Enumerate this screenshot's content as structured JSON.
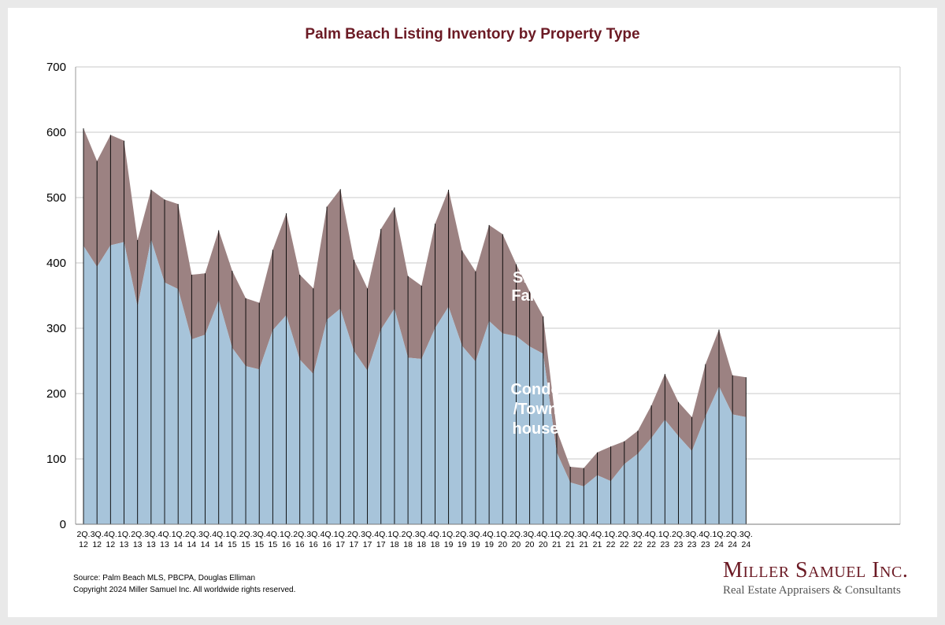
{
  "page": {
    "title": "Palm Beach Listing Inventory by Property Type",
    "source": "Source: Palm Beach MLS, PBCPA, Douglas Elliman",
    "copyright": "Copyright 2024 Miller Samuel Inc.  All worldwide rights reserved.",
    "brand_name": "Miller Samuel Inc.",
    "brand_tagline": "Real Estate Appraisers & Consultants"
  },
  "colors": {
    "title": "#6b1a24",
    "condo": "#a7c4da",
    "single_family": "#9c8282",
    "brand": "#6b1a24"
  },
  "chart_data": {
    "type": "area",
    "stacked": true,
    "title": "Palm Beach Listing Inventory by Property Type",
    "xlabel": "",
    "ylabel": "",
    "ylim": [
      0,
      700
    ],
    "yticks": [
      0,
      100,
      200,
      300,
      400,
      500,
      600,
      700
    ],
    "grid": true,
    "x": [
      [
        "2Q.",
        "12"
      ],
      [
        "3Q.",
        "12"
      ],
      [
        "4Q.",
        "12"
      ],
      [
        "1Q.",
        "13"
      ],
      [
        "2Q.",
        "13"
      ],
      [
        "3Q.",
        "13"
      ],
      [
        "4Q.",
        "13"
      ],
      [
        "1Q.",
        "14"
      ],
      [
        "2Q.",
        "14"
      ],
      [
        "3Q.",
        "14"
      ],
      [
        "4Q.",
        "14"
      ],
      [
        "1Q.",
        "15"
      ],
      [
        "2Q.",
        "15"
      ],
      [
        "3Q.",
        "15"
      ],
      [
        "4Q.",
        "15"
      ],
      [
        "1Q.",
        "16"
      ],
      [
        "2Q.",
        "16"
      ],
      [
        "3Q.",
        "16"
      ],
      [
        "4Q.",
        "16"
      ],
      [
        "1Q.",
        "17"
      ],
      [
        "2Q.",
        "17"
      ],
      [
        "3Q.",
        "17"
      ],
      [
        "4Q.",
        "17"
      ],
      [
        "1Q.",
        "18"
      ],
      [
        "2Q.",
        "18"
      ],
      [
        "3Q.",
        "18"
      ],
      [
        "4Q.",
        "18"
      ],
      [
        "1Q.",
        "19"
      ],
      [
        "2Q.",
        "19"
      ],
      [
        "3Q.",
        "19"
      ],
      [
        "4Q.",
        "19"
      ],
      [
        "1Q.",
        "20"
      ],
      [
        "2Q.",
        "20"
      ],
      [
        "3Q.",
        "20"
      ],
      [
        "4Q.",
        "20"
      ],
      [
        "1Q.",
        "21"
      ],
      [
        "2Q.",
        "21"
      ],
      [
        "3Q.",
        "21"
      ],
      [
        "4Q.",
        "21"
      ],
      [
        "1Q.",
        "22"
      ],
      [
        "2Q.",
        "22"
      ],
      [
        "3Q.",
        "22"
      ],
      [
        "4Q.",
        "22"
      ],
      [
        "1Q.",
        "23"
      ],
      [
        "2Q.",
        "23"
      ],
      [
        "3Q.",
        "23"
      ],
      [
        "4Q.",
        "23"
      ],
      [
        "1Q.",
        "24"
      ],
      [
        "2Q.",
        "24"
      ],
      [
        "3Q.",
        "24"
      ]
    ],
    "series": [
      {
        "name": "Condo /Town house",
        "label_lines": [
          "Condo",
          "/Town",
          "house"
        ],
        "values": [
          426,
          394,
          427,
          432,
          333,
          436,
          370,
          360,
          283,
          290,
          343,
          270,
          242,
          237,
          297,
          320,
          252,
          230,
          313,
          330,
          265,
          235,
          298,
          330,
          255,
          253,
          300,
          333,
          273,
          249,
          311,
          292,
          288,
          272,
          261,
          110,
          64,
          58,
          75,
          66,
          92,
          108,
          132,
          160,
          135,
          112,
          165,
          211,
          168,
          164
        ]
      },
      {
        "name": "Single Family",
        "label_lines": [
          "Single",
          "Family"
        ],
        "values": [
          180,
          162,
          169,
          155,
          102,
          76,
          127,
          130,
          99,
          94,
          107,
          118,
          104,
          102,
          123,
          156,
          130,
          131,
          173,
          183,
          140,
          126,
          154,
          155,
          125,
          112,
          160,
          179,
          146,
          138,
          147,
          152,
          110,
          84,
          57,
          34,
          24,
          28,
          35,
          53,
          35,
          35,
          50,
          70,
          52,
          52,
          80,
          87,
          60,
          61
        ]
      }
    ]
  }
}
